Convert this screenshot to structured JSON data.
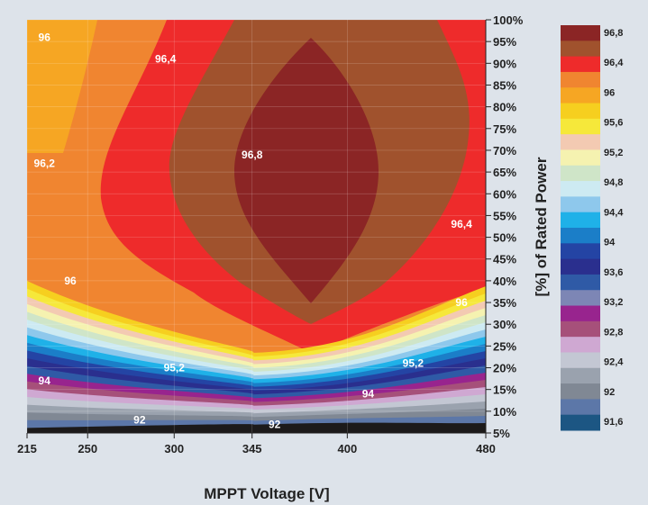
{
  "chart_data": {
    "type": "contour",
    "xlabel": "MPPT Voltage [V]",
    "ylabel": "[%] of Rated Power",
    "x_ticks": [
      "215",
      "250",
      "300",
      "345",
      "400",
      "480"
    ],
    "x_tick_values": [
      215,
      250,
      300,
      345,
      400,
      480
    ],
    "y_ticks": [
      "100%",
      "95%",
      "90%",
      "85%",
      "80%",
      "75%",
      "70%",
      "65%",
      "60%",
      "55%",
      "50%",
      "45%",
      "40%",
      "35%",
      "30%",
      "25%",
      "20%",
      "15%",
      "10%",
      "5%"
    ],
    "y_tick_values": [
      100,
      95,
      90,
      85,
      80,
      75,
      70,
      65,
      60,
      55,
      50,
      45,
      40,
      35,
      30,
      25,
      20,
      15,
      10,
      5
    ],
    "xlim": [
      215,
      480
    ],
    "ylim": [
      5,
      100
    ],
    "legend_position": "right",
    "legend_labels": [
      {
        "label": "96,8",
        "value": 96.8
      },
      {
        "label": "96,4",
        "value": 96.4
      },
      {
        "label": "96",
        "value": 96.0
      },
      {
        "label": "95,6",
        "value": 95.6
      },
      {
        "label": "95,2",
        "value": 95.2
      },
      {
        "label": "94,8",
        "value": 94.8
      },
      {
        "label": "94,4",
        "value": 94.4
      },
      {
        "label": "94",
        "value": 94.0
      },
      {
        "label": "93,6",
        "value": 93.6
      },
      {
        "label": "93,2",
        "value": 93.2
      },
      {
        "label": "92,8",
        "value": 92.8
      },
      {
        "label": "92,4",
        "value": 92.4
      },
      {
        "label": "92",
        "value": 92.0
      },
      {
        "label": "91,6",
        "value": 91.6
      }
    ],
    "legend_colors": [
      "#8b2525",
      "#a0522d",
      "#ee2b2b",
      "#f08530",
      "#f6a623",
      "#f6cf1f",
      "#f6e83a",
      "#f3cab2",
      "#f5f2b0",
      "#cfe5c8",
      "#cdeaf2",
      "#8ec8ec",
      "#1fb1e8",
      "#1b7ec8",
      "#2444a4",
      "#2a2f8e",
      "#2f5aa6",
      "#7d86b5",
      "#98248e",
      "#a6507a",
      "#cfa8d2",
      "#c3c7d3",
      "#9aa2ae",
      "#808894",
      "#5c77a8",
      "#1c5683"
    ],
    "contour_labels": [
      {
        "text": "96",
        "x": 225,
        "y": 96
      },
      {
        "text": "96,4",
        "x": 295,
        "y": 91
      },
      {
        "text": "96,2",
        "x": 225,
        "y": 67
      },
      {
        "text": "96,8",
        "x": 345,
        "y": 69
      },
      {
        "text": "96,4",
        "x": 466,
        "y": 53
      },
      {
        "text": "96",
        "x": 240,
        "y": 40
      },
      {
        "text": "96",
        "x": 466,
        "y": 35
      },
      {
        "text": "95,2",
        "x": 300,
        "y": 20
      },
      {
        "text": "95,2",
        "x": 438,
        "y": 21
      },
      {
        "text": "94",
        "x": 225,
        "y": 17
      },
      {
        "text": "94",
        "x": 412,
        "y": 14
      },
      {
        "text": "92",
        "x": 280,
        "y": 8
      },
      {
        "text": "92",
        "x": 358,
        "y": 7
      }
    ]
  }
}
